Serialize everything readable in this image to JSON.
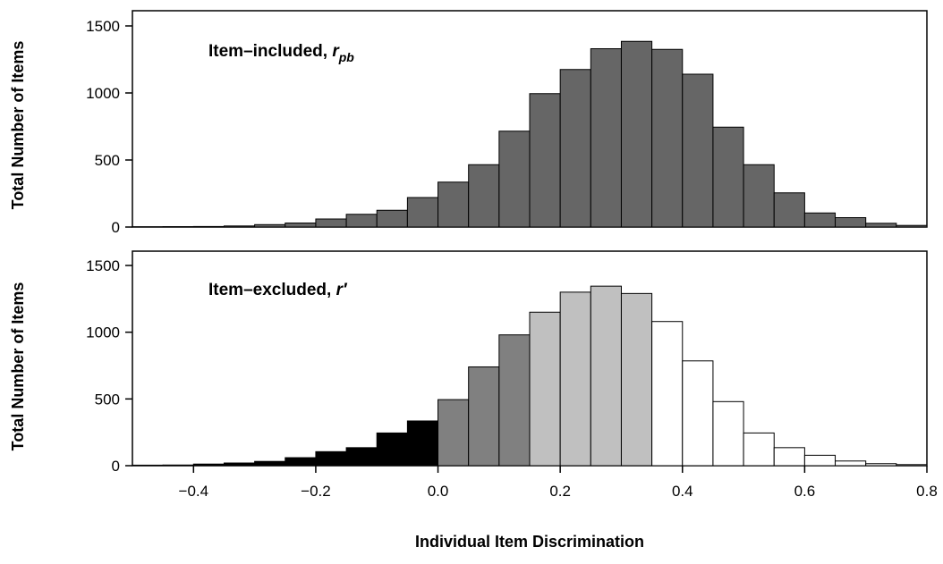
{
  "chart_data": [
    {
      "type": "bar",
      "panel": "top",
      "label_main": "Item–included, ",
      "label_symbol": "r",
      "label_sub": "pb",
      "ylabel": "Total Number of Items",
      "xlim": [
        -0.5,
        0.8
      ],
      "ylim": [
        0,
        1600
      ],
      "yticks": [
        "0",
        "500",
        "1000",
        "1500"
      ],
      "bin_width": 0.05,
      "bins": [
        {
          "x0": -0.5,
          "value": 2,
          "fill": "#666666"
        },
        {
          "x0": -0.45,
          "value": 3,
          "fill": "#666666"
        },
        {
          "x0": -0.4,
          "value": 4,
          "fill": "#666666"
        },
        {
          "x0": -0.35,
          "value": 8,
          "fill": "#666666"
        },
        {
          "x0": -0.3,
          "value": 18,
          "fill": "#666666"
        },
        {
          "x0": -0.25,
          "value": 30,
          "fill": "#666666"
        },
        {
          "x0": -0.2,
          "value": 60,
          "fill": "#666666"
        },
        {
          "x0": -0.15,
          "value": 95,
          "fill": "#666666"
        },
        {
          "x0": -0.1,
          "value": 125,
          "fill": "#666666"
        },
        {
          "x0": -0.05,
          "value": 220,
          "fill": "#666666"
        },
        {
          "x0": 0.0,
          "value": 335,
          "fill": "#666666"
        },
        {
          "x0": 0.05,
          "value": 465,
          "fill": "#666666"
        },
        {
          "x0": 0.1,
          "value": 715,
          "fill": "#666666"
        },
        {
          "x0": 0.15,
          "value": 995,
          "fill": "#666666"
        },
        {
          "x0": 0.2,
          "value": 1175,
          "fill": "#666666"
        },
        {
          "x0": 0.25,
          "value": 1330,
          "fill": "#666666"
        },
        {
          "x0": 0.3,
          "value": 1385,
          "fill": "#666666"
        },
        {
          "x0": 0.35,
          "value": 1325,
          "fill": "#666666"
        },
        {
          "x0": 0.4,
          "value": 1140,
          "fill": "#666666"
        },
        {
          "x0": 0.45,
          "value": 745,
          "fill": "#666666"
        },
        {
          "x0": 0.5,
          "value": 465,
          "fill": "#666666"
        },
        {
          "x0": 0.55,
          "value": 255,
          "fill": "#666666"
        },
        {
          "x0": 0.6,
          "value": 105,
          "fill": "#666666"
        },
        {
          "x0": 0.65,
          "value": 70,
          "fill": "#666666"
        },
        {
          "x0": 0.7,
          "value": 28,
          "fill": "#666666"
        },
        {
          "x0": 0.75,
          "value": 12,
          "fill": "#666666"
        }
      ]
    },
    {
      "type": "bar",
      "panel": "bottom",
      "label_main": "Item–excluded, ",
      "label_symbol": "r′",
      "label_sub": "",
      "ylabel": "Total Number of Items",
      "xlabel": "Individual Item Discrimination",
      "xlim": [
        -0.5,
        0.8
      ],
      "ylim": [
        0,
        1600
      ],
      "yticks": [
        "0",
        "500",
        "1000",
        "1500"
      ],
      "xticks": [
        "−0.4",
        "−0.2",
        "0.0",
        "0.2",
        "0.4",
        "0.6",
        "0.8"
      ],
      "xtick_values": [
        -0.4,
        -0.2,
        0.0,
        0.2,
        0.4,
        0.6,
        0.8
      ],
      "bin_width": 0.05,
      "bins": [
        {
          "x0": -0.5,
          "value": 4,
          "fill": "#000000"
        },
        {
          "x0": -0.45,
          "value": 5,
          "fill": "#000000"
        },
        {
          "x0": -0.4,
          "value": 12,
          "fill": "#000000"
        },
        {
          "x0": -0.35,
          "value": 20,
          "fill": "#000000"
        },
        {
          "x0": -0.3,
          "value": 32,
          "fill": "#000000"
        },
        {
          "x0": -0.25,
          "value": 60,
          "fill": "#000000"
        },
        {
          "x0": -0.2,
          "value": 105,
          "fill": "#000000"
        },
        {
          "x0": -0.15,
          "value": 135,
          "fill": "#000000"
        },
        {
          "x0": -0.1,
          "value": 245,
          "fill": "#000000"
        },
        {
          "x0": -0.05,
          "value": 335,
          "fill": "#000000"
        },
        {
          "x0": 0.0,
          "value": 495,
          "fill": "#808080"
        },
        {
          "x0": 0.05,
          "value": 740,
          "fill": "#808080"
        },
        {
          "x0": 0.1,
          "value": 980,
          "fill": "#808080"
        },
        {
          "x0": 0.15,
          "value": 1150,
          "fill": "#c0c0c0"
        },
        {
          "x0": 0.2,
          "value": 1300,
          "fill": "#c0c0c0"
        },
        {
          "x0": 0.25,
          "value": 1345,
          "fill": "#c0c0c0"
        },
        {
          "x0": 0.3,
          "value": 1290,
          "fill": "#c0c0c0"
        },
        {
          "x0": 0.35,
          "value": 1080,
          "fill": "#ffffff"
        },
        {
          "x0": 0.4,
          "value": 785,
          "fill": "#ffffff"
        },
        {
          "x0": 0.45,
          "value": 480,
          "fill": "#ffffff"
        },
        {
          "x0": 0.5,
          "value": 245,
          "fill": "#ffffff"
        },
        {
          "x0": 0.55,
          "value": 135,
          "fill": "#ffffff"
        },
        {
          "x0": 0.6,
          "value": 78,
          "fill": "#ffffff"
        },
        {
          "x0": 0.65,
          "value": 35,
          "fill": "#ffffff"
        },
        {
          "x0": 0.7,
          "value": 15,
          "fill": "#ffffff"
        },
        {
          "x0": 0.75,
          "value": 8,
          "fill": "#ffffff"
        }
      ]
    }
  ]
}
